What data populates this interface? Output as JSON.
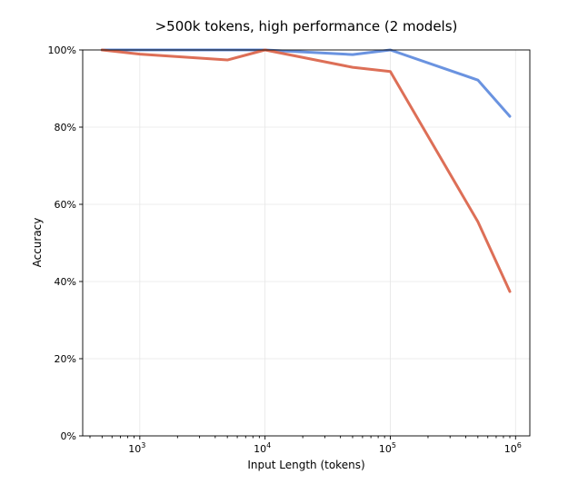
{
  "chart_data": {
    "type": "line",
    "title": ">500k tokens, high performance (2 models)",
    "xlabel": "Input Length (tokens)",
    "ylabel": "Accuracy",
    "x_scale": "log",
    "xlim": [
      350,
      1300000
    ],
    "ylim": [
      0,
      100
    ],
    "x_ticks": [
      {
        "value": 1000,
        "base": "10",
        "exp": "3"
      },
      {
        "value": 10000,
        "base": "10",
        "exp": "4"
      },
      {
        "value": 100000,
        "base": "10",
        "exp": "5"
      },
      {
        "value": 1000000,
        "base": "10",
        "exp": "6"
      }
    ],
    "y_ticks": [
      {
        "value": 0,
        "label": "0%"
      },
      {
        "value": 20,
        "label": "20%"
      },
      {
        "value": 40,
        "label": "40%"
      },
      {
        "value": 60,
        "label": "60%"
      },
      {
        "value": 80,
        "label": "80%"
      },
      {
        "value": 100,
        "label": "100%"
      }
    ],
    "grid": true,
    "series": [
      {
        "color": "#6a93e0",
        "x": [
          500,
          1000,
          5000,
          10000,
          50000,
          100000,
          500000,
          900000
        ],
        "y": [
          100,
          100,
          100,
          100,
          98.8,
          100,
          92.2,
          82.8
        ]
      },
      {
        "color": "#dd6f57",
        "x": [
          500,
          1000,
          5000,
          10000,
          50000,
          100000,
          500000,
          900000
        ],
        "y": [
          100,
          98.9,
          97.4,
          100,
          95.5,
          94.4,
          55.5,
          37.4
        ]
      }
    ]
  }
}
